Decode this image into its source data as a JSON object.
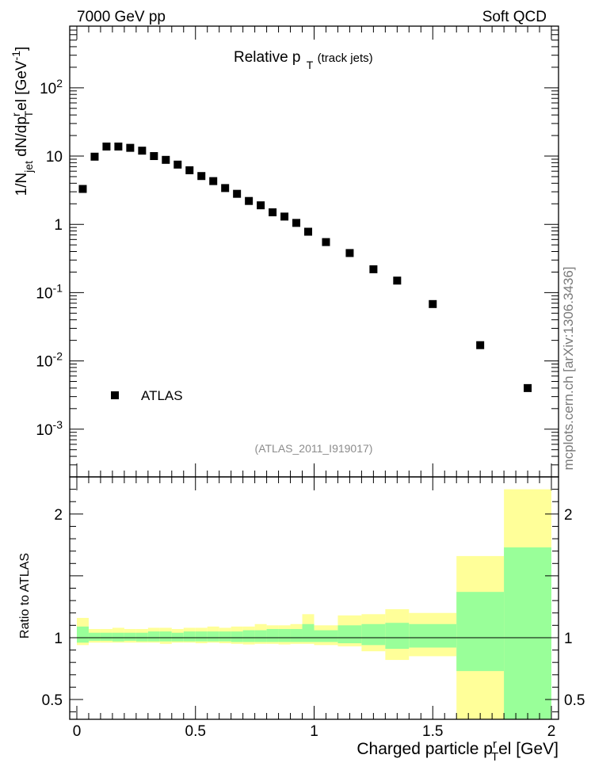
{
  "header": {
    "left": "7000 GeV pp",
    "right": "Soft QCD"
  },
  "side_label": "mcplots.cern.ch [arXiv:1306.3436]",
  "chart_data": [
    {
      "type": "scatter",
      "title": "Relative p",
      "title_sub": "T",
      "title_suffix": " (track jets)",
      "ylabel": {
        "pre": "1/N",
        "sub1": "jet",
        "mid": " dN/dp",
        "sup2": "r",
        "sub2": "T",
        "post": "el [GeV",
        "sup3": "-1",
        "end": "]"
      },
      "xlim": [
        -0.03,
        2.03
      ],
      "ylim": [
        0.0002,
        800
      ],
      "yscale": "log",
      "yticks": [
        {
          "value": 0.001,
          "base": "10",
          "exp": "-3"
        },
        {
          "value": 0.01,
          "base": "10",
          "exp": "-2"
        },
        {
          "value": 0.1,
          "base": "10",
          "exp": "-1"
        },
        {
          "value": 1,
          "base": "1",
          "exp": ""
        },
        {
          "value": 10,
          "base": "10",
          "exp": ""
        },
        {
          "value": 100,
          "base": "10",
          "exp": "2"
        }
      ],
      "legend": {
        "entry": "ATLAS",
        "position": "lower-left"
      },
      "annotation": "(ATLAS_2011_I919017)",
      "series": [
        {
          "name": "ATLAS",
          "color": "#000000",
          "marker": "square",
          "x": [
            0.025,
            0.075,
            0.125,
            0.175,
            0.225,
            0.275,
            0.325,
            0.375,
            0.425,
            0.475,
            0.525,
            0.575,
            0.625,
            0.675,
            0.725,
            0.775,
            0.825,
            0.875,
            0.925,
            0.975,
            1.05,
            1.15,
            1.25,
            1.35,
            1.5,
            1.7,
            1.9
          ],
          "y": [
            3.3,
            9.8,
            13.8,
            13.8,
            13.2,
            12.0,
            10.0,
            8.8,
            7.5,
            6.2,
            5.1,
            4.3,
            3.4,
            2.8,
            2.2,
            1.9,
            1.5,
            1.3,
            1.05,
            0.78,
            0.55,
            0.38,
            0.22,
            0.15,
            0.068,
            0.017,
            0.004
          ]
        }
      ]
    },
    {
      "type": "area",
      "ylabel": "Ratio to ATLAS",
      "xlabel": {
        "pre": "Charged particle p",
        "sup": "r",
        "sub": "T",
        "post": "el [GeV]"
      },
      "xlim": [
        -0.03,
        2.03
      ],
      "ylim": [
        0.34,
        2.3
      ],
      "yticks": [
        0.5,
        1,
        2
      ],
      "xticks": [
        0,
        0.5,
        1,
        1.5,
        2
      ],
      "xticklabels": [
        "0",
        "0.5",
        "1",
        "1.5",
        "2"
      ],
      "reference": 1,
      "band_colors": {
        "outer": "#ffff99",
        "inner": "#99ff99"
      },
      "bins": [
        {
          "lo": 0.0,
          "hi": 0.05,
          "yellow": [
            0.94,
            1.16
          ],
          "green": [
            0.96,
            1.09
          ]
        },
        {
          "lo": 0.05,
          "hi": 0.1,
          "yellow": [
            0.96,
            1.07
          ],
          "green": [
            0.975,
            1.04
          ]
        },
        {
          "lo": 0.1,
          "hi": 0.15,
          "yellow": [
            0.96,
            1.07
          ],
          "green": [
            0.975,
            1.04
          ]
        },
        {
          "lo": 0.15,
          "hi": 0.2,
          "yellow": [
            0.96,
            1.08
          ],
          "green": [
            0.97,
            1.04
          ]
        },
        {
          "lo": 0.2,
          "hi": 0.25,
          "yellow": [
            0.96,
            1.07
          ],
          "green": [
            0.975,
            1.04
          ]
        },
        {
          "lo": 0.25,
          "hi": 0.3,
          "yellow": [
            0.96,
            1.07
          ],
          "green": [
            0.97,
            1.04
          ]
        },
        {
          "lo": 0.3,
          "hi": 0.35,
          "yellow": [
            0.96,
            1.08
          ],
          "green": [
            0.97,
            1.05
          ]
        },
        {
          "lo": 0.35,
          "hi": 0.4,
          "yellow": [
            0.95,
            1.08
          ],
          "green": [
            0.97,
            1.05
          ]
        },
        {
          "lo": 0.4,
          "hi": 0.45,
          "yellow": [
            0.96,
            1.07
          ],
          "green": [
            0.97,
            1.04
          ]
        },
        {
          "lo": 0.45,
          "hi": 0.5,
          "yellow": [
            0.96,
            1.08
          ],
          "green": [
            0.97,
            1.05
          ]
        },
        {
          "lo": 0.5,
          "hi": 0.55,
          "yellow": [
            0.955,
            1.08
          ],
          "green": [
            0.97,
            1.05
          ]
        },
        {
          "lo": 0.55,
          "hi": 0.6,
          "yellow": [
            0.96,
            1.09
          ],
          "green": [
            0.97,
            1.05
          ]
        },
        {
          "lo": 0.6,
          "hi": 0.65,
          "yellow": [
            0.955,
            1.08
          ],
          "green": [
            0.97,
            1.05
          ]
        },
        {
          "lo": 0.65,
          "hi": 0.7,
          "yellow": [
            0.95,
            1.09
          ],
          "green": [
            0.965,
            1.05
          ]
        },
        {
          "lo": 0.7,
          "hi": 0.75,
          "yellow": [
            0.945,
            1.09
          ],
          "green": [
            0.965,
            1.06
          ]
        },
        {
          "lo": 0.75,
          "hi": 0.8,
          "yellow": [
            0.95,
            1.11
          ],
          "green": [
            0.965,
            1.06
          ]
        },
        {
          "lo": 0.8,
          "hi": 0.85,
          "yellow": [
            0.95,
            1.1
          ],
          "green": [
            0.965,
            1.07
          ]
        },
        {
          "lo": 0.85,
          "hi": 0.9,
          "yellow": [
            0.945,
            1.1
          ],
          "green": [
            0.965,
            1.07
          ]
        },
        {
          "lo": 0.9,
          "hi": 0.95,
          "yellow": [
            0.95,
            1.11
          ],
          "green": [
            0.965,
            1.07
          ]
        },
        {
          "lo": 0.95,
          "hi": 1.0,
          "yellow": [
            0.95,
            1.19
          ],
          "green": [
            0.965,
            1.11
          ]
        },
        {
          "lo": 1.0,
          "hi": 1.1,
          "yellow": [
            0.94,
            1.1
          ],
          "green": [
            0.965,
            1.06
          ]
        },
        {
          "lo": 1.1,
          "hi": 1.2,
          "yellow": [
            0.93,
            1.18
          ],
          "green": [
            0.955,
            1.1
          ]
        },
        {
          "lo": 1.2,
          "hi": 1.3,
          "yellow": [
            0.89,
            1.19
          ],
          "green": [
            0.94,
            1.11
          ]
        },
        {
          "lo": 1.3,
          "hi": 1.4,
          "yellow": [
            0.82,
            1.23
          ],
          "green": [
            0.91,
            1.12
          ]
        },
        {
          "lo": 1.4,
          "hi": 1.6,
          "yellow": [
            0.85,
            1.2
          ],
          "green": [
            0.92,
            1.11
          ]
        },
        {
          "lo": 1.6,
          "hi": 1.8,
          "yellow": [
            0.34,
            1.66
          ],
          "green": [
            0.73,
            1.37
          ]
        },
        {
          "lo": 1.8,
          "hi": 2.0,
          "yellow": [
            0.34,
            2.2
          ],
          "green": [
            0.34,
            1.73
          ]
        }
      ]
    }
  ]
}
